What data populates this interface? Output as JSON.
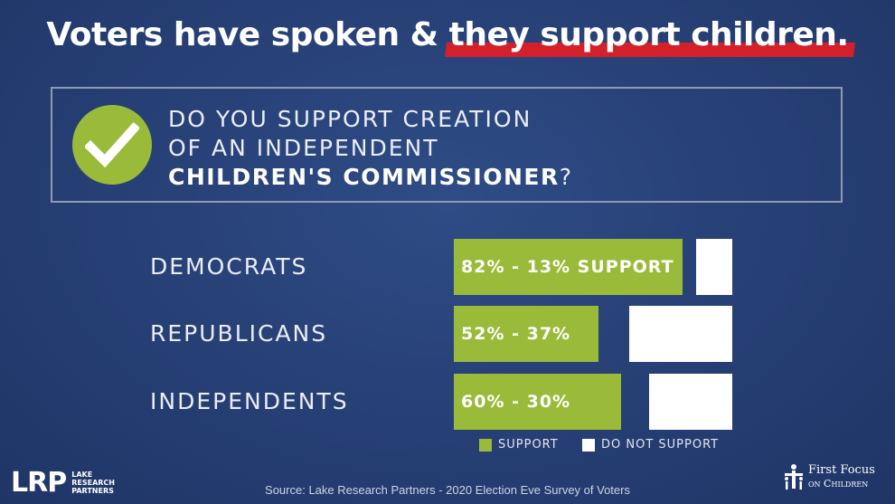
{
  "headline": {
    "part1": "Voters have spoken & ",
    "part2": "they support children."
  },
  "question": {
    "line1": "DO YOU SUPPORT CREATION",
    "line2": "OF AN INDEPENDENT",
    "line3_bold": "CHILDREN'S COMMISSIONER",
    "line3_end": "?"
  },
  "chart_data": {
    "type": "bar",
    "title": "DO YOU SUPPORT CREATION OF AN INDEPENDENT CHILDREN'S COMMISSIONER?",
    "categories": [
      "DEMOCRATS",
      "REPUBLICANS",
      "INDEPENDENTS"
    ],
    "series": [
      {
        "name": "SUPPORT",
        "values": [
          82,
          52,
          60
        ],
        "color": "#9abb3a"
      },
      {
        "name": "DO NOT SUPPORT",
        "values": [
          13,
          37,
          30
        ],
        "color": "#ffffff"
      }
    ],
    "data_labels": [
      "82% - 13% SUPPORT",
      "52% - 37%",
      "60% - 30%"
    ],
    "legend": [
      "SUPPORT",
      "DO NOT SUPPORT"
    ],
    "legend_position": "bottom",
    "xlim": [
      0,
      100
    ]
  },
  "footer": {
    "lrp_logo": "LRP",
    "lrp_sub1": "LAKE",
    "lrp_sub2": "RESEARCH",
    "lrp_sub3": "PARTNERS",
    "source": "Source: Lake Research Partners - 2020 Election Eve Survey of Voters",
    "ffc_line1": "First Focus",
    "ffc_line2": "on Children"
  },
  "colors": {
    "accent_red": "#d3202a",
    "support_green": "#9abb3a",
    "background": "#263f74"
  }
}
